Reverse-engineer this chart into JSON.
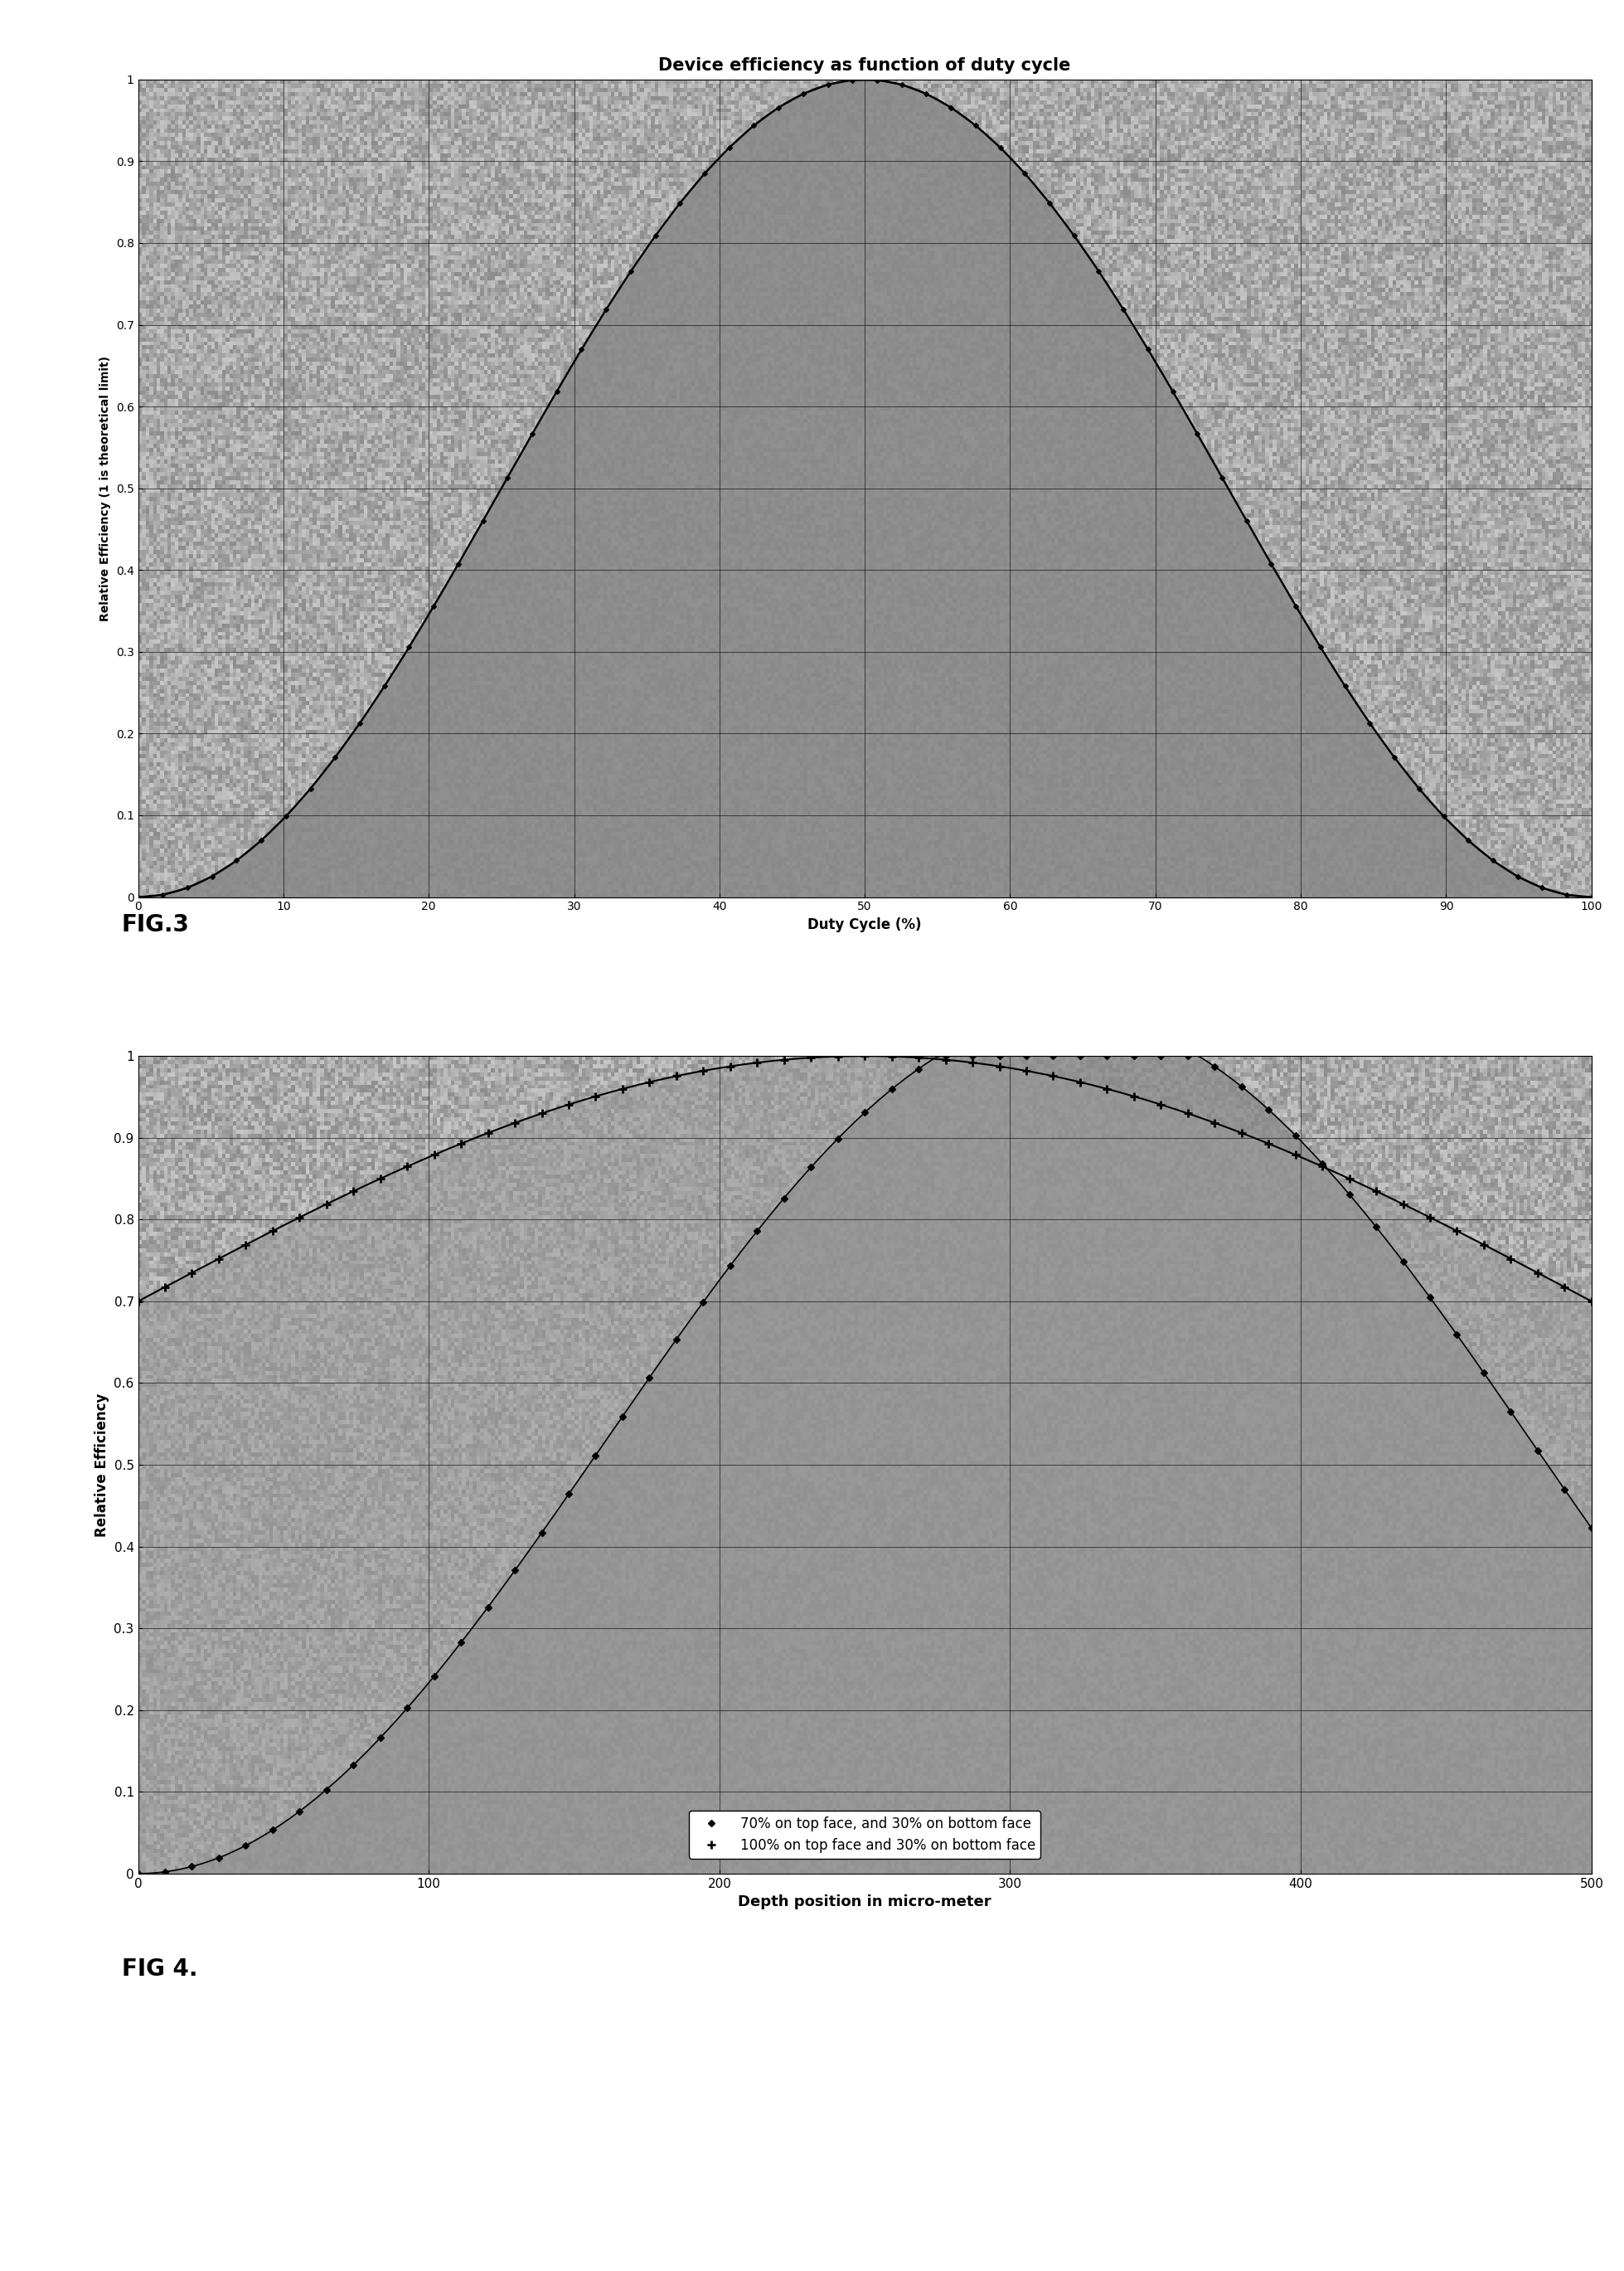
{
  "fig3": {
    "title": "Device efficiency as function of duty cycle",
    "xlabel": "Duty Cycle (%)",
    "ylabel": "Relative Efficiency (1 is theoretical limit)",
    "xlim": [
      0,
      100
    ],
    "ylim": [
      0,
      1
    ],
    "xticks": [
      0,
      10,
      20,
      30,
      40,
      50,
      60,
      70,
      80,
      90,
      100
    ],
    "yticks": [
      0,
      0.1,
      0.2,
      0.3,
      0.4,
      0.5,
      0.6,
      0.7,
      0.8,
      0.9,
      1
    ],
    "fig_label": "FIG.3",
    "bg_color": "#b0b0b0",
    "noise_color": "#909090"
  },
  "fig4": {
    "xlabel": "Depth position in micro-meter",
    "ylabel": "Relative Efficiency",
    "xlim": [
      0,
      500
    ],
    "ylim": [
      0,
      1
    ],
    "xticks": [
      0,
      100,
      200,
      300,
      400,
      500
    ],
    "yticks": [
      0,
      0.1,
      0.2,
      0.3,
      0.4,
      0.5,
      0.6,
      0.7,
      0.8,
      0.9,
      1
    ],
    "legend1": "70% on top face, and 30% on bottom face",
    "legend2": "100% on top face and 30% on bottom face",
    "fig_label": "FIG 4.",
    "bg_color": "#b0b0b0"
  },
  "page_bg": "#ffffff"
}
